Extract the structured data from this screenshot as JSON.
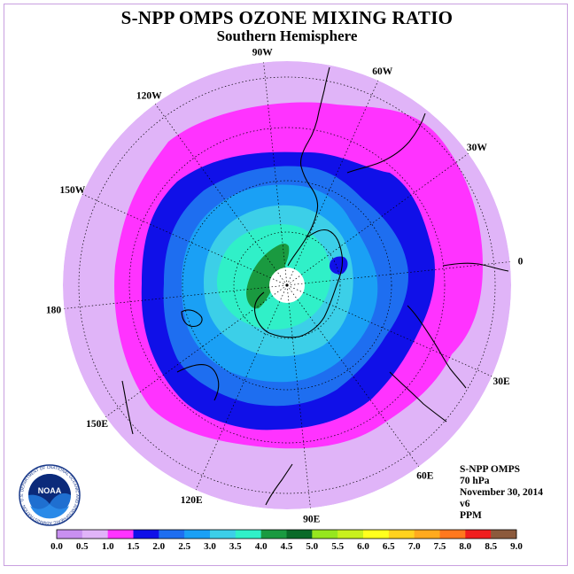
{
  "title": "S-NPP OMPS OZONE MIXING RATIO",
  "subtitle": "Southern Hemisphere",
  "info": {
    "instrument": "S-NPP OMPS",
    "pressure": "70 hPa",
    "date": "November 30, 2014",
    "version": "v6",
    "units": "PPM"
  },
  "logo": {
    "text": "NOAA",
    "ring_text": "NATIONAL OCEANIC AND ATMOSPHERIC ADMINISTRATION · U.S. DEPARTMENT OF COMMERCE"
  },
  "map": {
    "projection": "south polar stereographic",
    "longitude_labels": [
      "90W",
      "60W",
      "30W",
      "0",
      "30E",
      "60E",
      "90E",
      "120E",
      "150E",
      "180",
      "150W",
      "120W"
    ],
    "colors": {
      "outer": "#e0b4f8",
      "band_1_0": "#ff33ff",
      "band_1_5": "#1010e8",
      "band_2_0": "#1e6ef0",
      "band_2_5": "#1aa0f5",
      "band_3_0": "#3ccfe8",
      "band_3_5": "#30f0c8",
      "band_4_0": "#1a9a40",
      "pole_gap": "#ffffff",
      "coastline": "#000000"
    }
  },
  "colorbar": {
    "ticks": [
      "0.0",
      "0.5",
      "1.0",
      "1.5",
      "2.0",
      "2.5",
      "3.0",
      "3.5",
      "4.0",
      "4.5",
      "5.0",
      "5.5",
      "6.0",
      "6.5",
      "7.0",
      "7.5",
      "8.0",
      "8.5",
      "9.0"
    ],
    "colors": [
      "#c890f0",
      "#e0b4f8",
      "#ff33ff",
      "#1010e8",
      "#1e6ef0",
      "#1aa0f5",
      "#3ccfe8",
      "#30f0c8",
      "#1a9a40",
      "#0a6a28",
      "#96e61e",
      "#c8f01e",
      "#ffff1e",
      "#ffd21e",
      "#ffaa1e",
      "#ff781e",
      "#f01e1e",
      "#8c5a3c"
    ]
  }
}
